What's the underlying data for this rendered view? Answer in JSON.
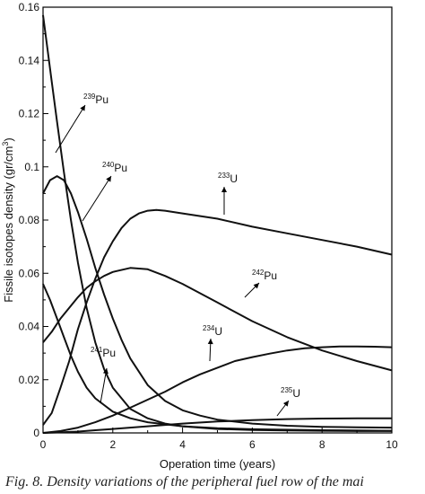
{
  "chart_data": {
    "type": "line",
    "xlabel": "Operation time (years)",
    "ylabel": "Fissile isotopes density (gr/cm",
    "ylabel_sup": "3",
    "ylabel_close": ")",
    "xlim": [
      0,
      10
    ],
    "ylim": [
      0,
      0.16
    ],
    "x_ticks": [
      "0",
      "2",
      "4",
      "6",
      "8",
      "10"
    ],
    "y_ticks": [
      "0",
      "0.02",
      "0.04",
      "0.06",
      "0.08",
      "0.1",
      "0.12",
      "0.14",
      "0.16"
    ],
    "grid": false,
    "series": [
      {
        "name": "239Pu",
        "points": [
          [
            0,
            0.157
          ],
          [
            0.1,
            0.147
          ],
          [
            0.25,
            0.132
          ],
          [
            0.4,
            0.117
          ],
          [
            0.6,
            0.098
          ],
          [
            0.8,
            0.08
          ],
          [
            1,
            0.064
          ],
          [
            1.25,
            0.047
          ],
          [
            1.5,
            0.034
          ],
          [
            1.75,
            0.024
          ],
          [
            2,
            0.017
          ],
          [
            2.5,
            0.009
          ],
          [
            3,
            0.0055
          ],
          [
            3.5,
            0.0035
          ],
          [
            4,
            0.0025
          ],
          [
            5,
            0.0015
          ],
          [
            6,
            0.0011
          ],
          [
            7,
            0.0009
          ],
          [
            8,
            0.0008
          ],
          [
            9,
            0.0007
          ],
          [
            10,
            0.0007
          ]
        ]
      },
      {
        "name": "240Pu",
        "points": [
          [
            0,
            0.09
          ],
          [
            0.2,
            0.095
          ],
          [
            0.4,
            0.0965
          ],
          [
            0.6,
            0.095
          ],
          [
            0.8,
            0.09
          ],
          [
            1,
            0.083
          ],
          [
            1.25,
            0.073
          ],
          [
            1.5,
            0.062
          ],
          [
            1.75,
            0.052
          ],
          [
            2,
            0.043
          ],
          [
            2.25,
            0.035
          ],
          [
            2.5,
            0.028
          ],
          [
            3,
            0.018
          ],
          [
            3.5,
            0.012
          ],
          [
            4,
            0.0085
          ],
          [
            4.5,
            0.0065
          ],
          [
            5,
            0.005
          ],
          [
            6,
            0.0035
          ],
          [
            7,
            0.0027
          ],
          [
            8,
            0.0023
          ],
          [
            9,
            0.0021
          ],
          [
            10,
            0.002
          ]
        ]
      },
      {
        "name": "241Pu",
        "points": [
          [
            0,
            0.056
          ],
          [
            0.2,
            0.05
          ],
          [
            0.4,
            0.043
          ],
          [
            0.6,
            0.036
          ],
          [
            0.8,
            0.029
          ],
          [
            1,
            0.023
          ],
          [
            1.25,
            0.017
          ],
          [
            1.5,
            0.013
          ],
          [
            2,
            0.008
          ],
          [
            2.5,
            0.0055
          ],
          [
            3,
            0.004
          ],
          [
            4,
            0.0025
          ],
          [
            5,
            0.0018
          ],
          [
            6,
            0.0014
          ],
          [
            8,
            0.001
          ],
          [
            10,
            0.0008
          ]
        ]
      },
      {
        "name": "242Pu",
        "points": [
          [
            0,
            0.034
          ],
          [
            0.25,
            0.038
          ],
          [
            0.5,
            0.043
          ],
          [
            0.75,
            0.047
          ],
          [
            1,
            0.051
          ],
          [
            1.25,
            0.0545
          ],
          [
            1.5,
            0.057
          ],
          [
            1.75,
            0.059
          ],
          [
            2,
            0.0605
          ],
          [
            2.5,
            0.062
          ],
          [
            3,
            0.0615
          ],
          [
            3.5,
            0.059
          ],
          [
            4,
            0.056
          ],
          [
            5,
            0.049
          ],
          [
            6,
            0.042
          ],
          [
            7,
            0.036
          ],
          [
            8,
            0.031
          ],
          [
            9,
            0.027
          ],
          [
            10,
            0.0235
          ]
        ]
      },
      {
        "name": "233U",
        "points": [
          [
            0,
            0.003
          ],
          [
            0.25,
            0.0075
          ],
          [
            0.5,
            0.017
          ],
          [
            0.75,
            0.027
          ],
          [
            1,
            0.039
          ],
          [
            1.25,
            0.049
          ],
          [
            1.5,
            0.058
          ],
          [
            1.75,
            0.066
          ],
          [
            2,
            0.072
          ],
          [
            2.25,
            0.077
          ],
          [
            2.5,
            0.0805
          ],
          [
            2.75,
            0.0825
          ],
          [
            3,
            0.0835
          ],
          [
            3.25,
            0.0838
          ],
          [
            3.5,
            0.0835
          ],
          [
            4,
            0.0825
          ],
          [
            5,
            0.0805
          ],
          [
            6,
            0.0775
          ],
          [
            7,
            0.075
          ],
          [
            8,
            0.0725
          ],
          [
            9,
            0.07
          ],
          [
            10,
            0.067
          ]
        ]
      },
      {
        "name": "234U",
        "points": [
          [
            0,
            0
          ],
          [
            0.5,
            0.0007
          ],
          [
            1,
            0.002
          ],
          [
            1.5,
            0.004
          ],
          [
            2,
            0.0065
          ],
          [
            2.5,
            0.0095
          ],
          [
            3,
            0.0125
          ],
          [
            3.5,
            0.0155
          ],
          [
            4,
            0.019
          ],
          [
            4.5,
            0.022
          ],
          [
            5,
            0.0245
          ],
          [
            5.5,
            0.027
          ],
          [
            6,
            0.0285
          ],
          [
            6.5,
            0.0298
          ],
          [
            7,
            0.031
          ],
          [
            7.5,
            0.0318
          ],
          [
            8,
            0.0322
          ],
          [
            8.5,
            0.0325
          ],
          [
            9,
            0.0325
          ],
          [
            9.5,
            0.0324
          ],
          [
            10,
            0.0322
          ]
        ]
      },
      {
        "name": "235U",
        "points": [
          [
            0,
            0
          ],
          [
            0.5,
            0.0002
          ],
          [
            1,
            0.0005
          ],
          [
            1.5,
            0.001
          ],
          [
            2,
            0.0015
          ],
          [
            3,
            0.0025
          ],
          [
            4,
            0.0035
          ],
          [
            5,
            0.0043
          ],
          [
            6,
            0.0048
          ],
          [
            7,
            0.0052
          ],
          [
            8,
            0.0054
          ],
          [
            9,
            0.0055
          ],
          [
            10,
            0.0055
          ]
        ]
      }
    ],
    "annotations": [
      {
        "mass": "239",
        "element": "Pu"
      },
      {
        "mass": "240",
        "element": "Pu"
      },
      {
        "mass": "233",
        "element": "U"
      },
      {
        "mass": "242",
        "element": "Pu"
      },
      {
        "mass": "234",
        "element": "U"
      },
      {
        "mass": "241",
        "element": "Pu"
      },
      {
        "mass": "235",
        "element": "U"
      }
    ]
  },
  "caption": "Fig. 8.  Density variations of the peripheral fuel row of the mai"
}
